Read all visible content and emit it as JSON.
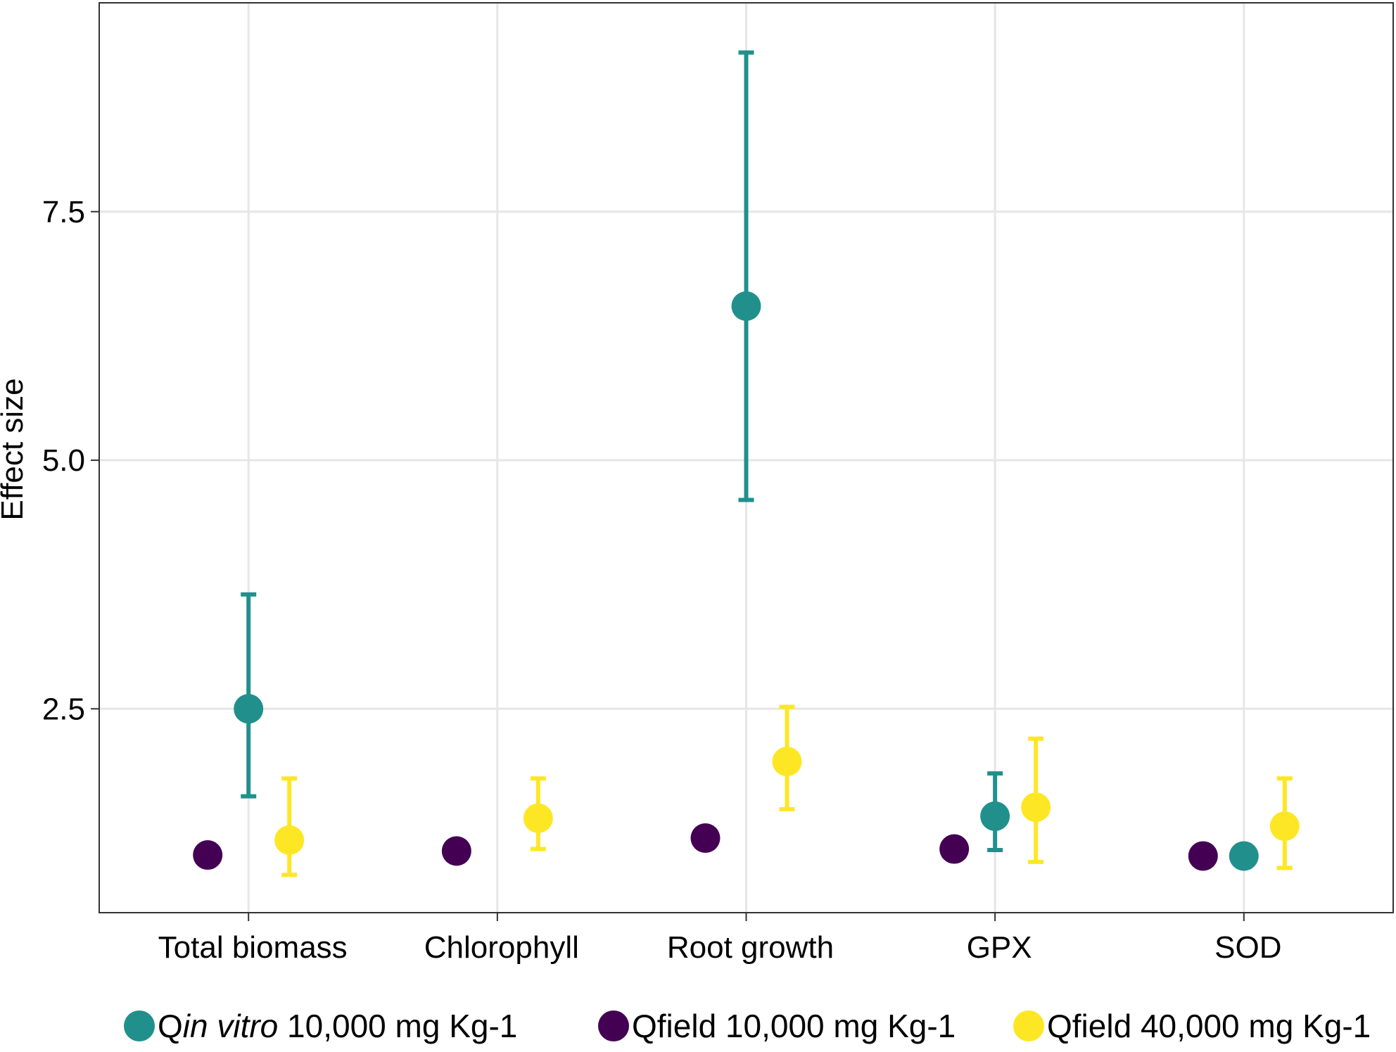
{
  "chart_data": {
    "type": "scatter",
    "title": "",
    "xlabel": "",
    "ylabel": "Effect size",
    "categories": [
      "Total biomass",
      "Chlorophyll",
      "Root growth",
      "GPX",
      "SOD"
    ],
    "ylim": [
      0.45,
      9.6
    ],
    "yticks": [
      "2.5",
      "5.0",
      "7.5"
    ],
    "grid": true,
    "legend_position": "bottom",
    "series": [
      {
        "name_prefix": "Q",
        "name_italic": "in vitro",
        "name_suffix": " 10,000 mg Kg-1",
        "color": "#21908C",
        "points": [
          {
            "category": "Total biomass",
            "y": 2.5,
            "low": 1.62,
            "high": 3.65
          },
          {
            "category": "Root growth",
            "y": 6.55,
            "low": 4.6,
            "high": 9.1
          },
          {
            "category": "GPX",
            "y": 1.42,
            "low": 1.08,
            "high": 1.85
          },
          {
            "category": "SOD",
            "y": 1.02,
            "low": null,
            "high": null
          }
        ]
      },
      {
        "name_prefix": "Qfield 10,000 mg Kg-1",
        "name_italic": "",
        "name_suffix": "",
        "color": "#440154",
        "points": [
          {
            "category": "Total biomass",
            "y": 1.03,
            "low": null,
            "high": null
          },
          {
            "category": "Chlorophyll",
            "y": 1.07,
            "low": null,
            "high": null
          },
          {
            "category": "Root growth",
            "y": 1.2,
            "low": null,
            "high": null
          },
          {
            "category": "GPX",
            "y": 1.09,
            "low": null,
            "high": null
          },
          {
            "category": "SOD",
            "y": 1.02,
            "low": null,
            "high": null
          }
        ]
      },
      {
        "name_prefix": "Qfield 40,000 mg Kg-1",
        "name_italic": "",
        "name_suffix": "",
        "color": "#FDE725",
        "points": [
          {
            "category": "Total biomass",
            "y": 1.18,
            "low": 0.83,
            "high": 1.8
          },
          {
            "category": "Chlorophyll",
            "y": 1.4,
            "low": 1.09,
            "high": 1.8
          },
          {
            "category": "Root growth",
            "y": 1.97,
            "low": 1.49,
            "high": 2.52
          },
          {
            "category": "GPX",
            "y": 1.51,
            "low": 0.96,
            "high": 2.2
          },
          {
            "category": "SOD",
            "y": 1.32,
            "low": 0.9,
            "high": 1.8
          }
        ]
      }
    ]
  }
}
